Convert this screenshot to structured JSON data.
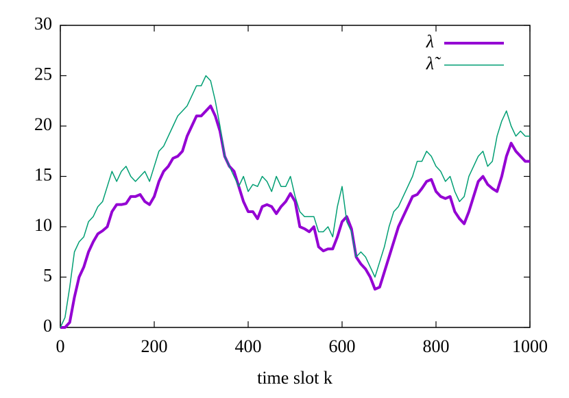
{
  "chart_data": {
    "type": "line",
    "xlabel": "time slot k",
    "x": [
      0,
      10,
      20,
      30,
      40,
      50,
      60,
      70,
      80,
      90,
      100,
      110,
      120,
      130,
      140,
      150,
      160,
      170,
      180,
      190,
      200,
      210,
      220,
      230,
      240,
      250,
      260,
      270,
      280,
      290,
      300,
      310,
      320,
      330,
      340,
      350,
      360,
      370,
      380,
      390,
      400,
      410,
      420,
      430,
      440,
      450,
      460,
      470,
      480,
      490,
      500,
      510,
      520,
      530,
      540,
      550,
      560,
      570,
      580,
      590,
      600,
      610,
      620,
      630,
      640,
      650,
      660,
      670,
      680,
      690,
      700,
      710,
      720,
      730,
      740,
      750,
      760,
      770,
      780,
      790,
      800,
      810,
      820,
      830,
      840,
      850,
      860,
      870,
      880,
      890,
      900,
      910,
      920,
      930,
      940,
      950,
      960,
      970,
      980,
      990,
      1000
    ],
    "series": [
      {
        "name": "λ",
        "color": "#9400d3",
        "width": 4,
        "values": [
          0,
          0,
          0.5,
          3,
          5,
          6,
          7.5,
          8.5,
          9.3,
          9.6,
          10,
          11.5,
          12.2,
          12.2,
          12.3,
          13,
          13,
          13.2,
          12.5,
          12.2,
          13,
          14.5,
          15.5,
          16,
          16.8,
          17,
          17.5,
          19,
          20,
          21,
          21,
          21.5,
          22,
          21,
          19.5,
          17,
          16,
          15.5,
          14,
          12.5,
          11.5,
          11.5,
          10.8,
          12,
          12.2,
          12,
          11.3,
          12,
          12.5,
          13.3,
          12.5,
          10,
          9.8,
          9.5,
          10,
          8,
          7.6,
          7.8,
          7.8,
          9,
          10.5,
          11,
          9.8,
          7,
          6.3,
          5.8,
          5,
          3.8,
          4,
          5.5,
          7,
          8.5,
          10,
          11,
          12,
          13,
          13.2,
          13.8,
          14.5,
          14.7,
          13.5,
          13,
          12.8,
          13,
          11.5,
          10.8,
          10.3,
          11.5,
          13,
          14.5,
          15,
          14.2,
          13.8,
          13.5,
          15,
          17,
          18.3,
          17.5,
          17,
          16.5,
          16.5
        ]
      },
      {
        "name": "λ̃",
        "color": "#009e73",
        "width": 1.5,
        "values": [
          0,
          1,
          4,
          7.5,
          8.5,
          9,
          10.5,
          11,
          12,
          12.5,
          14,
          15.5,
          14.5,
          15.5,
          16,
          15,
          14.5,
          15,
          15.5,
          14.5,
          16,
          17.5,
          18,
          19,
          20,
          21,
          21.5,
          22,
          23,
          24,
          24,
          25,
          24.5,
          22.5,
          20,
          17,
          16,
          15,
          14,
          15,
          13.5,
          14.2,
          14,
          15,
          14.5,
          13.5,
          15,
          14,
          14,
          15,
          13,
          11.5,
          11,
          11,
          11,
          9.5,
          9.5,
          10,
          9,
          12,
          14,
          10.5,
          9.5,
          7,
          7.5,
          7,
          6,
          5,
          6.5,
          8,
          10,
          11.5,
          12,
          13,
          14,
          15,
          16.5,
          16.5,
          17.5,
          17,
          16,
          15.5,
          14.5,
          15,
          13.5,
          12.5,
          13,
          15,
          16,
          17,
          17.5,
          16,
          16.5,
          19,
          20.5,
          21.5,
          20,
          19,
          19.5,
          19,
          19
        ]
      }
    ],
    "xlim": [
      0,
      1000
    ],
    "xticks": [
      0,
      200,
      400,
      600,
      800,
      1000
    ],
    "ylim": [
      0,
      30
    ],
    "yticks": [
      0,
      5,
      10,
      15,
      20,
      25,
      30
    ],
    "legend": "top right"
  }
}
